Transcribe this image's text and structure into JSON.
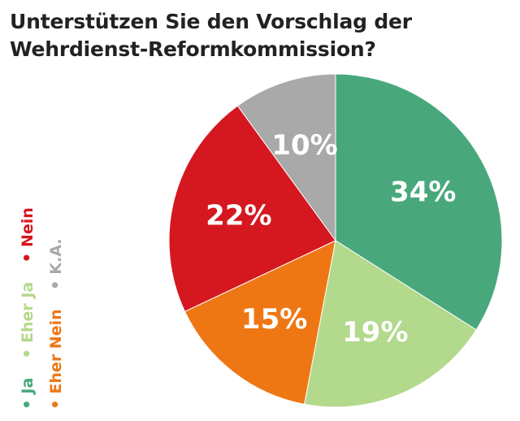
{
  "title": {
    "line1": "Unterstützen Sie den Vorschlag der",
    "line2": "Wehrdienst-Reformkommission?"
  },
  "legend": [
    {
      "label": "Ja",
      "color": "#48a87c"
    },
    {
      "label": "Eher Ja",
      "color": "#b3d98c"
    },
    {
      "label": "Nein",
      "color": "#d5171f"
    },
    {
      "label": "Eher Nein",
      "color": "#ee7714"
    },
    {
      "label": "K.A.",
      "color": "#a9a9a9"
    }
  ],
  "chart_data": {
    "type": "pie",
    "title": "Unterstützen Sie den Vorschlag der Wehrdienst-Reformkommission?",
    "slices": [
      {
        "label": "Ja",
        "value": 34,
        "display": "34%",
        "color": "#48a87c"
      },
      {
        "label": "Eher Ja",
        "value": 19,
        "display": "19%",
        "color": "#b3d98c"
      },
      {
        "label": "Eher Nein",
        "value": 15,
        "display": "15%",
        "color": "#ee7714"
      },
      {
        "label": "Nein",
        "value": 22,
        "display": "22%",
        "color": "#d5171f"
      },
      {
        "label": "K.A.",
        "value": 10,
        "display": "10%",
        "color": "#a9a9a9"
      }
    ]
  }
}
